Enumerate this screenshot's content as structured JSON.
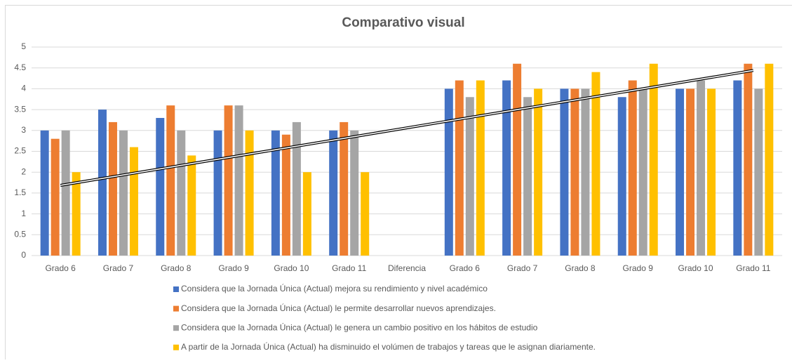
{
  "chart_data": {
    "type": "bar",
    "title": "Comparativo visual",
    "categories": [
      "Grado 6",
      "Grado 7",
      "Grado 8",
      "Grado 9",
      "Grado 10",
      "Grado 11",
      "Diferencia",
      "Grado 6",
      "Grado 7",
      "Grado 8",
      "Grado 9",
      "Grado 10",
      "Grado 11"
    ],
    "series": [
      {
        "name": "Considera que la Jornada Única (Actual) mejora su rendimiento y nivel académico",
        "color": "#4472c4",
        "values": [
          3,
          3.5,
          3.3,
          3,
          3,
          3,
          null,
          4,
          4.2,
          4,
          3.8,
          4,
          4.2
        ]
      },
      {
        "name": "Considera que la Jornada Única (Actual) le permite desarrollar nuevos aprendizajes.",
        "color": "#ed7d31",
        "values": [
          2.8,
          3.2,
          3.6,
          3.6,
          2.9,
          3.2,
          null,
          4.2,
          4.6,
          4,
          4.2,
          4,
          4.6
        ]
      },
      {
        "name": "Considera que la Jornada Única (Actual) le genera un cambio positivo en los hábitos de estudio",
        "color": "#a5a5a5",
        "values": [
          3,
          3,
          3,
          3.6,
          3.2,
          3,
          null,
          3.8,
          3.8,
          4,
          4,
          4.2,
          4
        ]
      },
      {
        "name": "A partir de la Jornada Única (Actual) ha disminuido el volúmen de trabajos y tareas que le asignan diariamente.",
        "color": "#ffc000",
        "values": [
          2,
          2.6,
          2.4,
          3,
          2,
          2,
          null,
          4.2,
          4,
          4.4,
          4.6,
          4,
          4.6
        ]
      }
    ],
    "ylim": [
      0,
      5
    ],
    "yticks": [
      0,
      0.5,
      1,
      1.5,
      2,
      2.5,
      3,
      3.5,
      4,
      4.5,
      5
    ],
    "grid": true,
    "legend": "bottom",
    "trendline": {
      "series": 3,
      "type": "linear"
    }
  }
}
